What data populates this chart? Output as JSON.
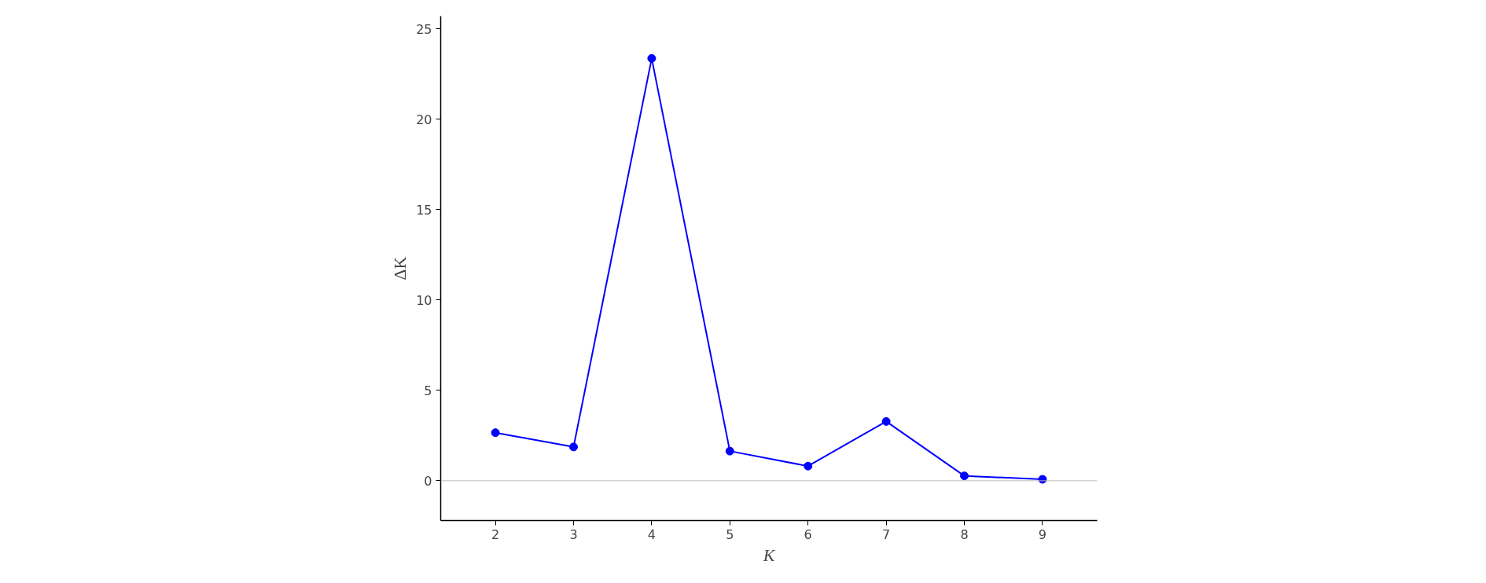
{
  "chart_data": {
    "type": "line",
    "xlabel": "K",
    "ylabel": "ΔK",
    "x": [
      2,
      3,
      4,
      5,
      6,
      7,
      8,
      9
    ],
    "series": [
      {
        "color": "#0000ff",
        "values": [
          2.66,
          1.87,
          23.36,
          1.64,
          0.81,
          3.28,
          0.27,
          0.08
        ]
      }
    ],
    "xlim": [
      1.3,
      9.7
    ],
    "xticks": [
      2,
      3,
      4,
      5,
      6,
      7,
      8,
      9
    ],
    "ylim": [
      -2.2,
      25.7
    ],
    "yticks": [
      0,
      5,
      10,
      15,
      20,
      25
    ],
    "ref_lines": [
      {
        "axis": "y",
        "value": 0,
        "color": "#bbbbbb"
      }
    ],
    "grid": false,
    "marker": "circle",
    "line_style": "solid"
  }
}
